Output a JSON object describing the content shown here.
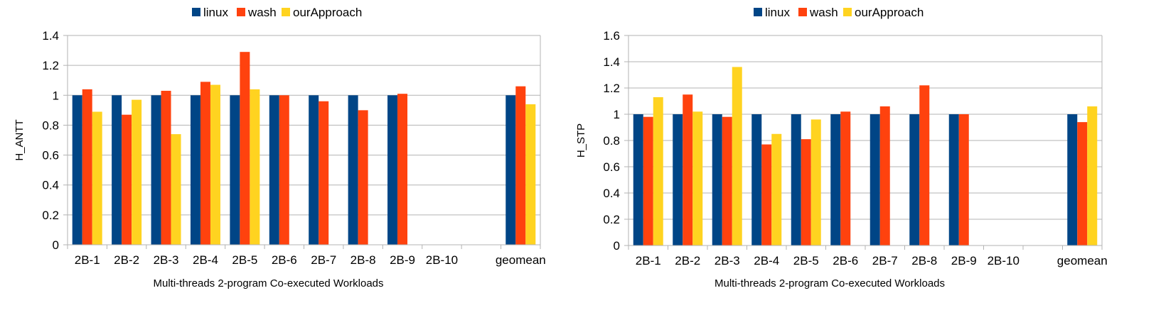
{
  "colors": {
    "linux": "#004586",
    "wash": "#ff420e",
    "ourApproach": "#ffd320",
    "grid": "#b3b3b3",
    "axis": "#b3b3b3"
  },
  "chart_data": [
    {
      "type": "bar",
      "categories": [
        "2B-1",
        "2B-2",
        "2B-3",
        "2B-4",
        "2B-5",
        "2B-6",
        "2B-7",
        "2B-8",
        "2B-9",
        "2B-10",
        "",
        "geomean"
      ],
      "series": [
        {
          "name": "linux",
          "values": [
            1,
            1,
            1,
            1,
            1,
            1,
            1,
            1,
            1,
            null,
            null,
            1
          ]
        },
        {
          "name": "wash",
          "values": [
            1.04,
            0.87,
            1.03,
            1.09,
            1.29,
            1,
            0.96,
            0.9,
            1.01,
            null,
            null,
            1.06
          ]
        },
        {
          "name": "ourApproach",
          "values": [
            0.89,
            0.97,
            0.74,
            1.07,
            1.04,
            null,
            null,
            null,
            null,
            null,
            null,
            0.94
          ]
        }
      ],
      "xlabel": "Multi-threads 2-program Co-executed Workloads",
      "ylabel": "H_ANTT",
      "ylim": [
        0,
        1.4
      ],
      "yticks": [
        "0",
        "0.2",
        "0.4",
        "0.6",
        "0.8",
        "1",
        "1.2",
        "1.4"
      ],
      "grid": true,
      "legend": "top"
    },
    {
      "type": "bar",
      "categories": [
        "2B-1",
        "2B-2",
        "2B-3",
        "2B-4",
        "2B-5",
        "2B-6",
        "2B-7",
        "2B-8",
        "2B-9",
        "2B-10",
        "",
        "geomean"
      ],
      "series": [
        {
          "name": "linux",
          "values": [
            1,
            1,
            1,
            1,
            1,
            1,
            1,
            1,
            1,
            null,
            null,
            1
          ]
        },
        {
          "name": "wash",
          "values": [
            0.98,
            1.15,
            0.98,
            0.77,
            0.81,
            1.02,
            1.06,
            1.22,
            1,
            null,
            null,
            0.94
          ]
        },
        {
          "name": "ourApproach",
          "values": [
            1.13,
            1.02,
            1.36,
            0.85,
            0.96,
            null,
            null,
            null,
            null,
            null,
            null,
            1.06
          ]
        }
      ],
      "xlabel": "Multi-threads 2-program Co-executed Workloads",
      "ylabel": "H_STP",
      "ylim": [
        0,
        1.6
      ],
      "yticks": [
        "0",
        "0.2",
        "0.4",
        "0.6",
        "0.8",
        "1",
        "1.2",
        "1.4",
        "1.6"
      ],
      "grid": true,
      "legend": "top"
    }
  ]
}
